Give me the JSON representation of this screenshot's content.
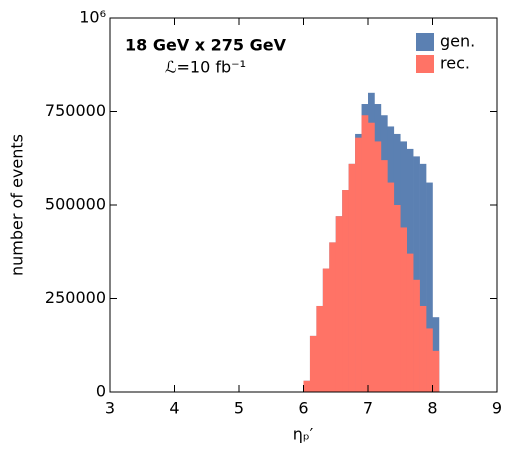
{
  "chart_data": {
    "type": "histogram",
    "annotations": [
      "18 GeV x 275 GeV",
      "ℒ=10 fb⁻¹"
    ],
    "xlabel": "ηₚ′",
    "ylabel": "number of events",
    "bins": [
      6.0,
      6.1,
      6.2,
      6.3,
      6.4,
      6.5,
      6.6,
      6.7,
      6.8,
      6.9,
      7.0,
      7.1,
      7.2,
      7.3,
      7.4,
      7.5,
      7.6,
      7.7,
      7.8,
      7.9,
      8.0,
      8.1
    ],
    "series": [
      {
        "name": "gen.",
        "color": "#5b80b2",
        "values": [
          30000,
          150000,
          230000,
          330000,
          400000,
          470000,
          540000,
          610000,
          690000,
          770000,
          800000,
          770000,
          740000,
          710000,
          690000,
          670000,
          650000,
          630000,
          610000,
          560000,
          200000
        ]
      },
      {
        "name": "rec.",
        "color": "#ff7366",
        "values": [
          30000,
          150000,
          230000,
          330000,
          400000,
          470000,
          540000,
          610000,
          680000,
          740000,
          720000,
          670000,
          620000,
          560000,
          500000,
          440000,
          370000,
          300000,
          230000,
          170000,
          110000
        ]
      }
    ],
    "xlim": [
      3,
      9
    ],
    "xticks": [
      3,
      4,
      5,
      6,
      7,
      8,
      9
    ],
    "ylim": [
      0,
      1000000
    ],
    "yticks": [
      0,
      250000,
      500000,
      750000,
      {
        "value": 1000000,
        "label": "10⁶"
      }
    ],
    "legend": "upper right"
  }
}
